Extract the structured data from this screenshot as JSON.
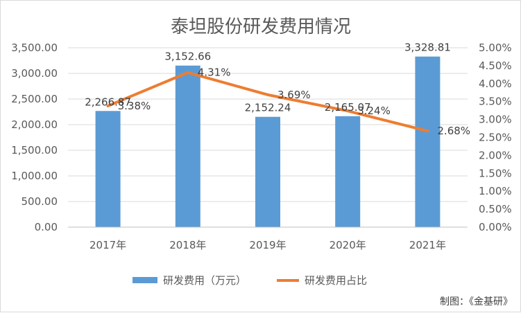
{
  "chart_data": {
    "type": "bar",
    "title": "泰坦股份研发费用情况",
    "categories": [
      "2017年",
      "2018年",
      "2019年",
      "2020年",
      "2021年"
    ],
    "series": [
      {
        "name": "研发费用（万元）",
        "type": "bar",
        "axis": "left",
        "values": [
          2266.87,
          3152.66,
          2152.24,
          2165.07,
          3328.81
        ],
        "labels": [
          "2,266.87",
          "3,152.66",
          "2,152.24",
          "2,165.07",
          "3,328.81"
        ],
        "color": "#5b9bd5"
      },
      {
        "name": "研发费用占比",
        "type": "line",
        "axis": "right",
        "values": [
          3.38,
          4.31,
          3.69,
          3.24,
          2.68
        ],
        "labels": [
          "3.38%",
          "4.31%",
          "3.69%",
          "3.24%",
          "2.68%"
        ],
        "color": "#ed7d31"
      }
    ],
    "y_left": {
      "min": 0,
      "max": 3500,
      "step": 500,
      "ticks": [
        "0.00",
        "500.00",
        "1,000.00",
        "1,500.00",
        "2,000.00",
        "2,500.00",
        "3,000.00",
        "3,500.00"
      ]
    },
    "y_right": {
      "min": 0,
      "max": 5,
      "step": 0.5,
      "ticks": [
        "0.00%",
        "0.50%",
        "1.00%",
        "1.50%",
        "2.00%",
        "2.50%",
        "3.00%",
        "3.50%",
        "4.00%",
        "4.50%",
        "5.00%"
      ]
    },
    "grid": true,
    "legend_position": "bottom"
  },
  "credit": "制图：《金基研》",
  "colors": {
    "gridline": "#d9d9d9",
    "text": "#595959"
  }
}
